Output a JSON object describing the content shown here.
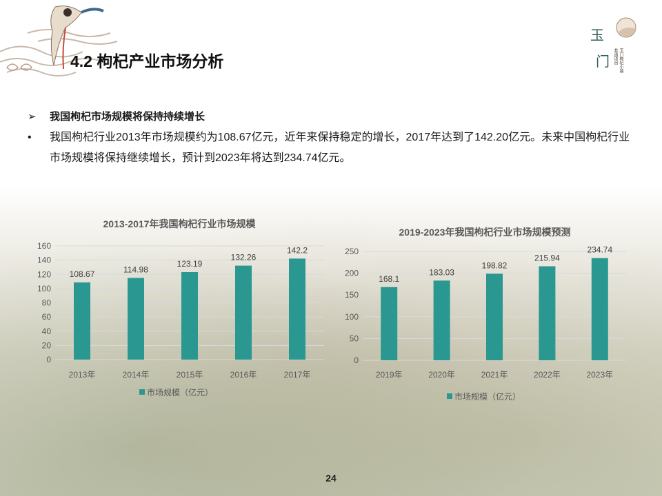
{
  "slide": {
    "title": "4.2 枸杞产业市场分析",
    "page_number": "24",
    "logo_text": {
      "main": "玉门",
      "side": "非 遗 项 目\n玉 门 枸 杞 小 镇"
    }
  },
  "bullets": [
    {
      "marker": "➢",
      "text": "我国枸杞市场规模将保持持续增长",
      "style": "heading"
    },
    {
      "marker": "•",
      "text": "我国枸杞行业2013年市场规模约为108.67亿元，近年来保持稳定的增长，2017年达到了142.20亿元。未来中国枸杞行业市场规模将保持继续增长，预计到2023年将达到234.74亿元。",
      "style": "body"
    }
  ],
  "colors": {
    "bar": "#2A9891",
    "grid": "#d9d9d9",
    "axis_text": "#595959"
  },
  "chart_data": [
    {
      "type": "bar",
      "title": "2013-2017年我国枸杞行业市场规模",
      "categories": [
        "2013年",
        "2014年",
        "2015年",
        "2016年",
        "2017年"
      ],
      "series": [
        {
          "name": "市场规模（亿元）",
          "values": [
            108.67,
            114.98,
            123.19,
            132.26,
            142.2
          ]
        }
      ],
      "value_labels": [
        "108.67",
        "114.98",
        "123.19",
        "132.26",
        "142.2"
      ],
      "ylim": [
        0,
        160
      ],
      "yticks": [
        0,
        20,
        40,
        60,
        80,
        100,
        120,
        140,
        160
      ],
      "ytick_labels": [
        "0",
        "20",
        "40",
        "60",
        "80",
        "100",
        "120",
        "140",
        "160"
      ],
      "grid": true,
      "legend": "bottom"
    },
    {
      "type": "bar",
      "title": "2019-2023年我国枸杞行业市场规模预测",
      "categories": [
        "2019年",
        "2020年",
        "2021年",
        "2022年",
        "2023年"
      ],
      "series": [
        {
          "name": "市场规模（亿元）",
          "values": [
            168.1,
            183.03,
            198.82,
            215.94,
            234.74
          ]
        }
      ],
      "value_labels": [
        "168.1",
        "183.03",
        "198.82",
        "215.94",
        "234.74"
      ],
      "ylim": [
        0,
        250
      ],
      "yticks": [
        0,
        50,
        100,
        150,
        200,
        250
      ],
      "ytick_labels": [
        "0",
        "50",
        "100",
        "150",
        "200",
        "250"
      ],
      "grid": true,
      "legend": "bottom"
    }
  ]
}
